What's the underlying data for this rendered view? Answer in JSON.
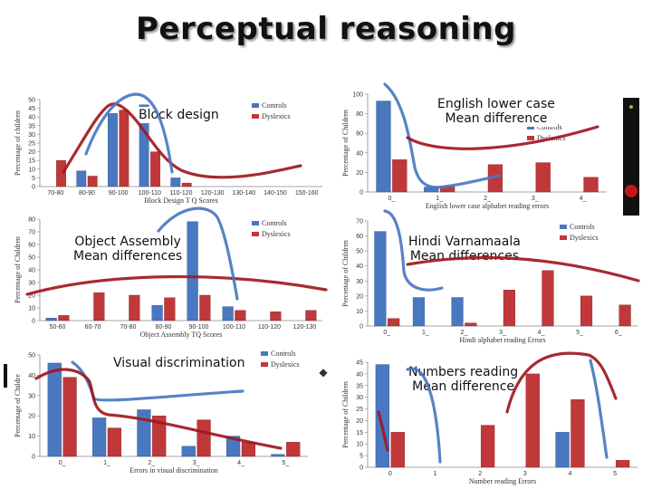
{
  "page": {
    "title": "Perceptual reasoning"
  },
  "colors": {
    "controls": "#4a78c0",
    "dyslexics": "#c0383a",
    "curve": "#a01820",
    "curve_blue": "#4a78c0"
  },
  "panels": [
    {
      "id": "block",
      "caption_lines": [
        "Block design"
      ],
      "chart_data": {
        "type": "bar",
        "categories": [
          "70-80",
          "80-90",
          "90-100",
          "100-110",
          "110-120",
          "120-130",
          "130-140",
          "140-150",
          "150-160"
        ],
        "series": [
          {
            "name": "Controls",
            "values": [
              0,
              9,
              42,
              47,
              5,
              0,
              0,
              0,
              0
            ]
          },
          {
            "name": "Dyslexics",
            "values": [
              15,
              6,
              44,
              20,
              2,
              0,
              0,
              0,
              0
            ]
          }
        ],
        "ylim": [
          0,
          50
        ],
        "yticks": [
          0,
          5,
          10,
          15,
          20,
          25,
          30,
          35,
          40,
          45,
          50
        ],
        "xlabel": "Block Design T Q Scores",
        "ylabel": "Percentage of children",
        "legend": "right"
      }
    },
    {
      "id": "english",
      "caption_lines": [
        "English lower case",
        "Mean difference"
      ],
      "chart_data": {
        "type": "bar",
        "categories": [
          "0_",
          "1_",
          "2_",
          "3_",
          "4_"
        ],
        "series": [
          {
            "name": "Controls",
            "values": [
              93,
              5,
              0,
              0,
              0
            ]
          },
          {
            "name": "Dyslexics",
            "values": [
              33,
              6,
              28,
              30,
              15
            ]
          }
        ],
        "ylim": [
          0,
          100
        ],
        "yticks": [
          0,
          20,
          40,
          60,
          80,
          100
        ],
        "xlabel": "English lower case alphabet reading errors",
        "ylabel": "Percentage of Children",
        "legend": "top-right"
      }
    },
    {
      "id": "object",
      "caption_lines": [
        "Object Assembly",
        "Mean differences"
      ],
      "chart_data": {
        "type": "bar",
        "categories": [
          "50-60",
          "60-70",
          "70-80",
          "80-90",
          "90-100",
          "100-110",
          "110-120",
          "120-130"
        ],
        "series": [
          {
            "name": "Controls",
            "values": [
              2,
              0,
              0,
              12,
              78,
              11,
              0,
              0
            ]
          },
          {
            "name": "Dyslexics",
            "values": [
              4,
              22,
              20,
              18,
              20,
              8,
              7,
              8
            ]
          }
        ],
        "ylim": [
          0,
          80
        ],
        "yticks": [
          0,
          10,
          20,
          30,
          40,
          50,
          60,
          70,
          80
        ],
        "xlabel": "Object Assembly TQ Scores",
        "ylabel": "Percentage of Children",
        "legend": "right"
      }
    },
    {
      "id": "hindi",
      "caption_lines": [
        "Hindi Varnamaala",
        "Mean differences"
      ],
      "chart_data": {
        "type": "bar",
        "categories": [
          "0_",
          "1_",
          "2_",
          "3_",
          "4_",
          "5_",
          "6_"
        ],
        "series": [
          {
            "name": "Controls",
            "values": [
              63,
              19,
              19,
              0,
              0,
              0,
              0
            ]
          },
          {
            "name": "Dyslexics",
            "values": [
              5,
              0,
              2,
              24,
              37,
              20,
              14
            ]
          }
        ],
        "ylim": [
          0,
          70
        ],
        "yticks": [
          0,
          10,
          20,
          30,
          40,
          50,
          60,
          70
        ],
        "xlabel": "Hindi alphabet reading Errors",
        "ylabel": "Percentage of Children",
        "legend": "right"
      }
    },
    {
      "id": "visual",
      "caption_lines": [
        "Visual discrimination"
      ],
      "chart_data": {
        "type": "bar",
        "categories": [
          "0_",
          "1_",
          "2_",
          "3_",
          "4_",
          "5_"
        ],
        "series": [
          {
            "name": "Controls",
            "values": [
              46,
              19,
              23,
              5,
              10,
              1
            ]
          },
          {
            "name": "Dyslexics",
            "values": [
              39,
              14,
              20,
              18,
              7,
              7
            ]
          }
        ],
        "ylim": [
          0,
          50
        ],
        "yticks": [
          0,
          10,
          20,
          30,
          40,
          50
        ],
        "xlabel": "Errors in visual discrimination",
        "ylabel": "Percentage of Childre",
        "legend": "top-right"
      }
    },
    {
      "id": "numbers",
      "caption_lines": [
        "Numbers reading",
        "Mean difference"
      ],
      "chart_data": {
        "type": "bar",
        "categories": [
          "0",
          "1",
          "2",
          "3",
          "4",
          "5"
        ],
        "series": [
          {
            "name": "Controls",
            "values": [
              44,
              0,
              0,
              0,
              15,
              0
            ]
          },
          {
            "name": "Dyslexics",
            "values": [
              15,
              0,
              18,
              40,
              29,
              3
            ]
          }
        ],
        "ylim": [
          0,
          45
        ],
        "yticks": [
          0,
          5,
          10,
          15,
          20,
          25,
          30,
          35,
          40,
          45
        ],
        "xlabel": "Number reading Errors",
        "ylabel": "Percentage of Children",
        "legend": "none"
      }
    }
  ]
}
